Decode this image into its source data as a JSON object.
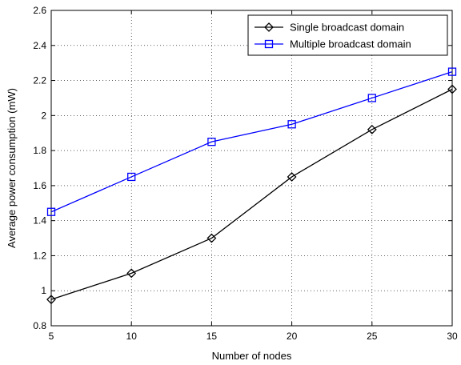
{
  "chart_data": {
    "type": "line",
    "title": "",
    "xlabel": "Number of nodes",
    "ylabel": "Average power consumption (mW)",
    "x": [
      5,
      10,
      15,
      20,
      25,
      30
    ],
    "xlim": [
      5,
      30
    ],
    "ylim": [
      0.8,
      2.6
    ],
    "xticks": [
      "5",
      "10",
      "15",
      "20",
      "25",
      "30"
    ],
    "yticks": [
      "0.8",
      "1",
      "1.2",
      "1.4",
      "1.6",
      "1.8",
      "2",
      "2.2",
      "2.4",
      "2.6"
    ],
    "grid": true,
    "legend_position": "top-right",
    "series": [
      {
        "name": "Single broadcast domain",
        "values": [
          0.95,
          1.1,
          1.3,
          1.65,
          1.92,
          2.15
        ],
        "color": "#000000",
        "marker": "diamond"
      },
      {
        "name": "Multiple broadcast domain",
        "values": [
          1.45,
          1.65,
          1.85,
          1.95,
          2.1,
          2.25
        ],
        "color": "#0000ff",
        "marker": "square"
      }
    ]
  }
}
